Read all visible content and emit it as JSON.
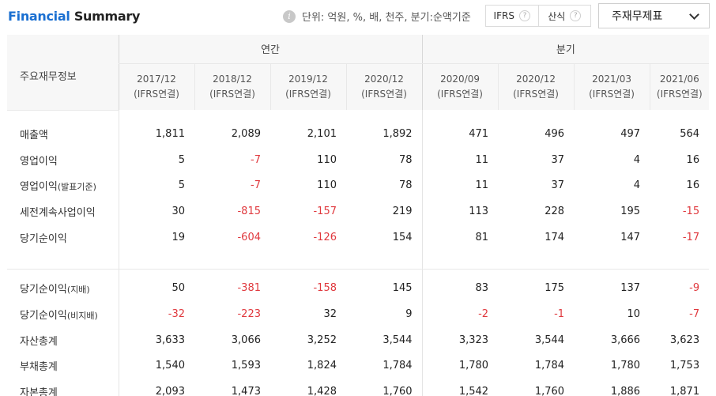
{
  "header": {
    "title_part1": "Financial",
    "title_part2": " Summary",
    "unit_text": "단위: 억원, %, 배, 천주, 분기:순액기준",
    "toggle": [
      {
        "label": "IFRS",
        "help": "?"
      },
      {
        "label": "산식",
        "help": "?"
      }
    ],
    "select_value": "주재무제표"
  },
  "table": {
    "row_header_label": "주요재무정보",
    "group_annual": "연간",
    "group_quarter": "분기",
    "columns": [
      {
        "date": "2017/12",
        "basis": "(IFRS연결)"
      },
      {
        "date": "2018/12",
        "basis": "(IFRS연결)"
      },
      {
        "date": "2019/12",
        "basis": "(IFRS연결)"
      },
      {
        "date": "2020/12",
        "basis": "(IFRS연결)"
      },
      {
        "date": "2020/09",
        "basis": "(IFRS연결)"
      },
      {
        "date": "2020/12",
        "basis": "(IFRS연결)"
      },
      {
        "date": "2021/03",
        "basis": "(IFRS연결)"
      },
      {
        "date": "2021/06",
        "basis": "(IFRS연결)"
      }
    ],
    "group1": [
      {
        "label": "매출액",
        "sub": "",
        "values": [
          "1,811",
          "2,089",
          "2,101",
          "1,892",
          "471",
          "496",
          "497",
          "564"
        ]
      },
      {
        "label": "영업이익",
        "sub": "",
        "values": [
          "5",
          "-7",
          "110",
          "78",
          "11",
          "37",
          "4",
          "16"
        ]
      },
      {
        "label": "영업이익",
        "sub": "(발표기준)",
        "values": [
          "5",
          "-7",
          "110",
          "78",
          "11",
          "37",
          "4",
          "16"
        ]
      },
      {
        "label": "세전계속사업이익",
        "sub": "",
        "values": [
          "30",
          "-815",
          "-157",
          "219",
          "113",
          "228",
          "195",
          "-15"
        ]
      },
      {
        "label": "당기순이익",
        "sub": "",
        "values": [
          "19",
          "-604",
          "-126",
          "154",
          "81",
          "174",
          "147",
          "-17"
        ]
      }
    ],
    "group2": [
      {
        "label": "당기순이익",
        "sub": "(지배)",
        "values": [
          "50",
          "-381",
          "-158",
          "145",
          "83",
          "175",
          "137",
          "-9"
        ]
      },
      {
        "label": "당기순이익",
        "sub": "(비지배)",
        "values": [
          "-32",
          "-223",
          "32",
          "9",
          "-2",
          "-1",
          "10",
          "-7"
        ]
      },
      {
        "label": "자산총계",
        "sub": "",
        "values": [
          "3,633",
          "3,066",
          "3,252",
          "3,544",
          "3,323",
          "3,544",
          "3,666",
          "3,623"
        ]
      },
      {
        "label": "부채총계",
        "sub": "",
        "values": [
          "1,540",
          "1,593",
          "1,824",
          "1,784",
          "1,780",
          "1,784",
          "1,780",
          "1,753"
        ]
      },
      {
        "label": "자본총계",
        "sub": "",
        "values": [
          "2,093",
          "1,473",
          "1,428",
          "1,760",
          "1,542",
          "1,760",
          "1,886",
          "1,871"
        ]
      }
    ]
  },
  "colors": {
    "title_accent": "#1a6fd1",
    "negative": "#e0393e",
    "header_bg": "#f7f7f7"
  }
}
